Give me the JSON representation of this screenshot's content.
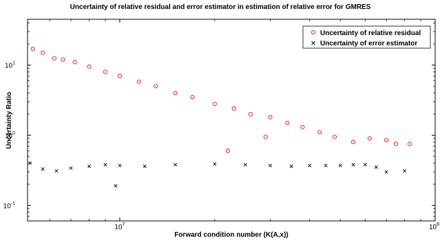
{
  "chart_data": {
    "type": "scatter",
    "title": "Uncertainty of relative residual and error estimator in estimation of relative error for GMRES",
    "xlabel": "Forward condition number (K(A,x))",
    "ylabel": "Uncertainty Ratio",
    "x_scale": "log",
    "y_scale": "log",
    "xlim": [
      5100000,
      100000000
    ],
    "ylim": [
      0.06,
      45
    ],
    "x_ticks": [
      {
        "base": "10",
        "exp": "7",
        "value": 10000000
      },
      {
        "base": "10",
        "exp": "8",
        "value": 100000000
      }
    ],
    "y_ticks": [
      {
        "base": "10",
        "exp": "-1",
        "value": 0.1
      },
      {
        "base": "10",
        "exp": "0",
        "value": 1
      },
      {
        "base": "10",
        "exp": "1",
        "value": 10
      }
    ],
    "grid": false,
    "legend_position": "top-right",
    "series": [
      {
        "name": "Uncertainty of relative residual",
        "marker": "circle",
        "color": "#ff0000",
        "points": [
          [
            5300000.0,
            17
          ],
          [
            5700000.0,
            15
          ],
          [
            6200000.0,
            12.5
          ],
          [
            6600000.0,
            12
          ],
          [
            7200000.0,
            11
          ],
          [
            8000000.0,
            9.5
          ],
          [
            9000000.0,
            8
          ],
          [
            10000000.0,
            7
          ],
          [
            11500000.0,
            5.8
          ],
          [
            13000000.0,
            5
          ],
          [
            15000000.0,
            4
          ],
          [
            17000000.0,
            3.5
          ],
          [
            20000000.0,
            2.8
          ],
          [
            23000000.0,
            2.4
          ],
          [
            26000000.0,
            2
          ],
          [
            30000000.0,
            1.8
          ],
          [
            34000000.0,
            1.5
          ],
          [
            38000000.0,
            1.3
          ],
          [
            43000000.0,
            1.1
          ],
          [
            48000000.0,
            0.95
          ],
          [
            55000000.0,
            0.8
          ],
          [
            62000000.0,
            0.9
          ],
          [
            70000000.0,
            0.85
          ],
          [
            75000000.0,
            0.75
          ],
          [
            83000000.0,
            0.75
          ],
          [
            22000000.0,
            0.6
          ],
          [
            29000000.0,
            0.95
          ]
        ]
      },
      {
        "name": "Uncertainty of error estimator",
        "marker": "x",
        "color": "#000000",
        "points": [
          [
            5200000.0,
            0.4
          ],
          [
            5700000.0,
            0.33
          ],
          [
            6300000.0,
            0.31
          ],
          [
            7000000.0,
            0.34
          ],
          [
            8000000.0,
            0.36
          ],
          [
            9000000.0,
            0.38
          ],
          [
            10000000.0,
            0.37
          ],
          [
            12000000.0,
            0.36
          ],
          [
            15000000.0,
            0.38
          ],
          [
            20000000.0,
            0.39
          ],
          [
            25000000.0,
            0.38
          ],
          [
            30000000.0,
            0.37
          ],
          [
            35000000.0,
            0.36
          ],
          [
            40000000.0,
            0.37
          ],
          [
            45000000.0,
            0.37
          ],
          [
            50000000.0,
            0.37
          ],
          [
            55000000.0,
            0.38
          ],
          [
            60000000.0,
            0.38
          ],
          [
            65000000.0,
            0.35
          ],
          [
            70000000.0,
            0.3
          ],
          [
            80000000.0,
            0.31
          ],
          [
            9700000.0,
            0.19
          ]
        ]
      }
    ]
  }
}
